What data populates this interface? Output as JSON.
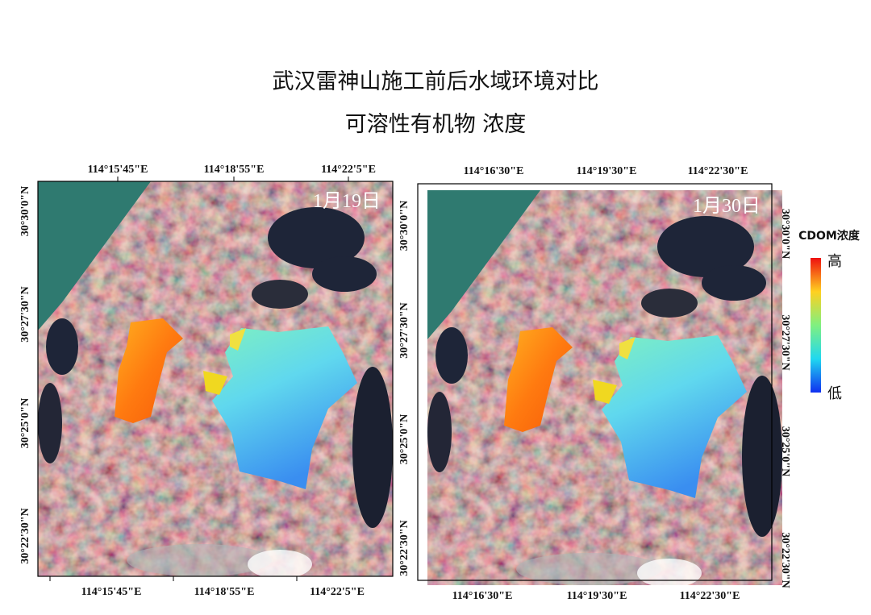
{
  "title": "武汉雷神山施工前后水域环境对比",
  "subtitle": "可溶性有机物 浓度",
  "maps": [
    {
      "date_label": "1月19日",
      "top_ticks": [
        "114°15'45\"E",
        "114°18'55\"E",
        "114°22'5\"E"
      ],
      "bottom_ticks": [
        "114°15'45\"E",
        "114°18'55\"E",
        "114°22'5\"E"
      ],
      "left_ticks": [
        "30°30'0\"N",
        "30°27'30\"N",
        "30°25'0\"N",
        "30°22'30\"N"
      ]
    },
    {
      "date_label": "1月30日",
      "top_ticks": [
        "114°16'30\"E",
        "114°19'30\"E",
        "114°22'30\"E"
      ],
      "bottom_ticks": [
        "114°16'30\"E",
        "114°19'30\"E",
        "114°22'30\"E"
      ],
      "left_ticks": [
        "30°30'0\"N",
        "30°27'30\"N",
        "30°25'0\"N",
        "30°22'30\"N"
      ],
      "right_ticks": [
        "30°30'0\"N",
        "30°27'30\"N",
        "30°25'0\"N",
        "30°22'30\"N"
      ]
    }
  ],
  "legend": {
    "title": "CDOM浓度",
    "high": "高",
    "low": "低"
  }
}
